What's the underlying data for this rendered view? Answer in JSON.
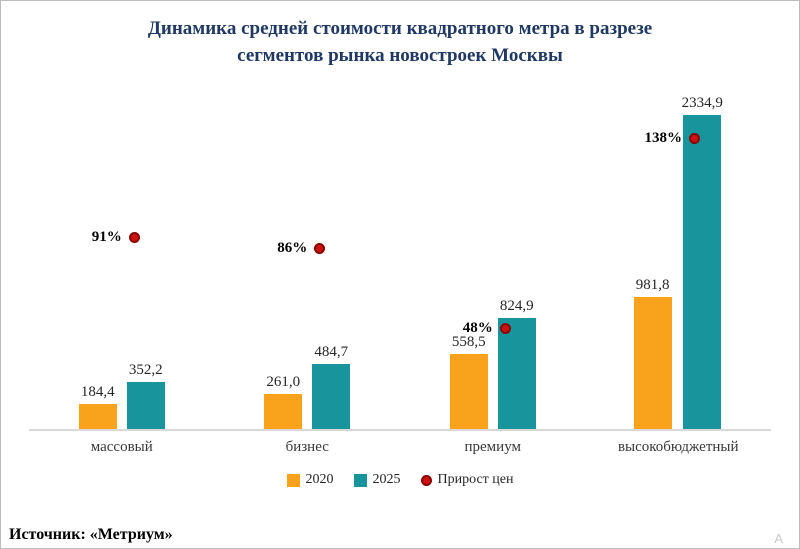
{
  "title": {
    "line1": "Динамика средней стоимости квадратного метра в разрезе",
    "line2": "сегментов рынка новостроек Москвы"
  },
  "source": "Источник: «Метриум»",
  "watermark": "А",
  "colors": {
    "bar2020": "#F9A21B",
    "bar2025": "#17949C",
    "marker_fill": "#CC1111",
    "marker_ring": "#8B0000",
    "title_text": "#1F3864"
  },
  "legend": [
    {
      "label": "2020",
      "type": "square",
      "color": "#F9A21B"
    },
    {
      "label": "2025",
      "type": "square",
      "color": "#17949C"
    },
    {
      "label": "Прирост цен",
      "type": "dot",
      "color": "#CC1111",
      "ring": "#8B0000"
    }
  ],
  "chart_data": {
    "type": "bar",
    "categories": [
      "массовый",
      "бизнес",
      "премиум",
      "высокобюджетный"
    ],
    "series": [
      {
        "name": "2020",
        "values": [
          184.4,
          261.0,
          558.5,
          981.8
        ],
        "labels": [
          "184,4",
          "261,0",
          "558,5",
          "981,8"
        ],
        "color": "#F9A21B"
      },
      {
        "name": "2025",
        "values": [
          352.2,
          484.7,
          824.9,
          2334.9
        ],
        "labels": [
          "352,2",
          "484,7",
          "824,9",
          "2334,9"
        ],
        "color": "#17949C"
      }
    ],
    "markers": {
      "name": "Прирост цен",
      "values": [
        91,
        86,
        48,
        138
      ],
      "labels": [
        "91%",
        "86%",
        "48%",
        "138%"
      ],
      "color": "#CC1111",
      "ring": "#8B0000"
    },
    "title": "Динамика средней стоимости квадратного метра в разрезе сегментов рынка новостроек Москвы",
    "xlabel": "",
    "ylabel": "",
    "grid": false,
    "legend_position": "bottom"
  }
}
